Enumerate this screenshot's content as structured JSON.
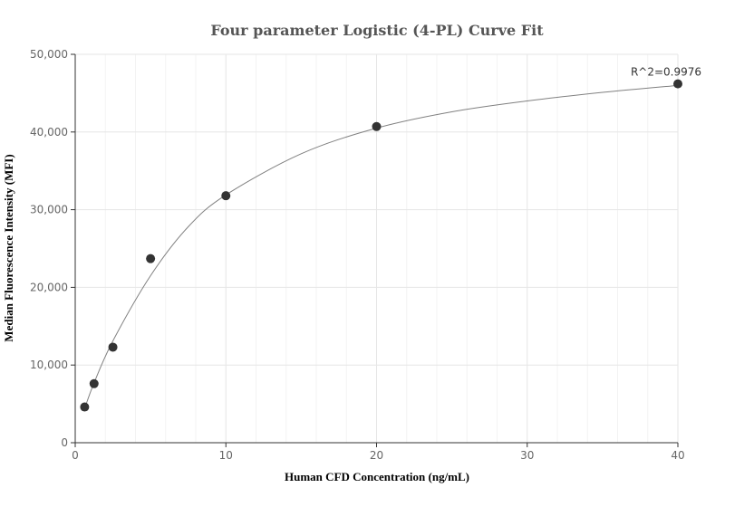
{
  "chart_data": {
    "type": "scatter",
    "title": "Four parameter Logistic (4-PL) Curve Fit",
    "xlabel": "Human CFD Concentration (ng/mL)",
    "ylabel": "Median Fluorescence Intensity (MFI)",
    "xlim": [
      0,
      40
    ],
    "ylim": [
      0,
      50000
    ],
    "x_ticks": [
      0,
      10,
      20,
      30,
      40
    ],
    "y_ticks": [
      0,
      10000,
      20000,
      30000,
      40000,
      50000
    ],
    "x_tick_labels": [
      "0",
      "10",
      "20",
      "30",
      "40"
    ],
    "y_tick_labels": [
      "0",
      "10,000",
      "20,000",
      "30,000",
      "40,000",
      "50,000"
    ],
    "grid": true,
    "points": {
      "x": [
        0.625,
        1.25,
        2.5,
        5,
        10,
        20,
        40
      ],
      "y": [
        4600,
        7600,
        12300,
        23700,
        31800,
        40700,
        46200
      ]
    },
    "fit_curve": {
      "x": [
        0.625,
        1.25,
        2.5,
        5,
        7.5,
        10,
        15,
        20,
        25,
        30,
        35,
        40
      ],
      "y": [
        4400,
        7700,
        13100,
        21500,
        27800,
        31900,
        37200,
        40500,
        42600,
        44000,
        45100,
        46000
      ]
    },
    "annotation": {
      "text": "R^2=0.9976",
      "x": 40,
      "y": 46200
    },
    "colors": {
      "points": "#333333",
      "curve": "#808080",
      "grid": "#e6e6e6",
      "axis": "#333333"
    }
  }
}
